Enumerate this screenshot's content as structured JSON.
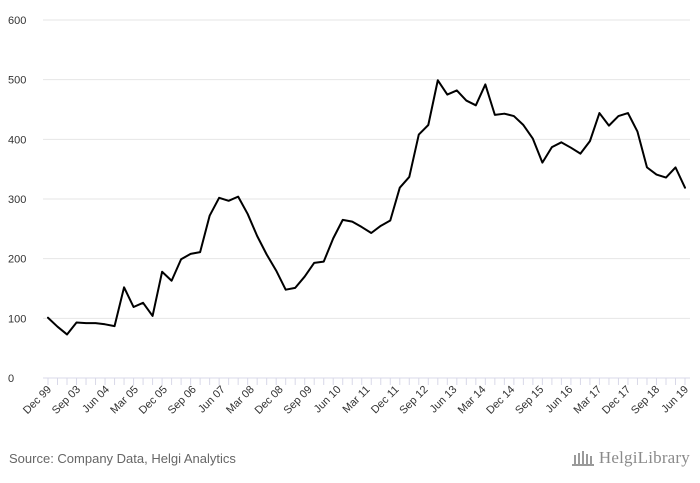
{
  "chart_data": {
    "type": "line",
    "title": "",
    "xlabel": "",
    "ylabel": "",
    "ylim": [
      0,
      600
    ],
    "y_ticks": [
      0,
      100,
      200,
      300,
      400,
      500,
      600
    ],
    "grid": true,
    "x_tick_labels": [
      "Dec 99",
      "Sep 03",
      "Jun 04",
      "Mar 05",
      "Dec 05",
      "Sep 06",
      "Jun 07",
      "Mar 08",
      "Dec 08",
      "Sep 09",
      "Jun 10",
      "Mar 11",
      "Dec 11",
      "Sep 12",
      "Jun 13",
      "Mar 14",
      "Dec 14",
      "Sep 15",
      "Jun 16",
      "Mar 17",
      "Dec 17",
      "Sep 18",
      "Jun 19"
    ],
    "series": [
      {
        "values": [
          101,
          86,
          73,
          93,
          92,
          92,
          90,
          87,
          152,
          119,
          126,
          104,
          178,
          163,
          199,
          208,
          211,
          272,
          302,
          297,
          304,
          275,
          238,
          207,
          180,
          148,
          151,
          170,
          193,
          195,
          234,
          265,
          262,
          253,
          243,
          255,
          264,
          319,
          337,
          408,
          424,
          499,
          475,
          482,
          465,
          457,
          492,
          441,
          443,
          439,
          424,
          401,
          361,
          387,
          395,
          386,
          376,
          397,
          444,
          423,
          439,
          444,
          413,
          353,
          341,
          336,
          353,
          319
        ]
      }
    ],
    "color": "#000000"
  },
  "footer": {
    "source": "Source: Company Data, Helgi Analytics",
    "logo_text": "HelgiLibrary"
  }
}
